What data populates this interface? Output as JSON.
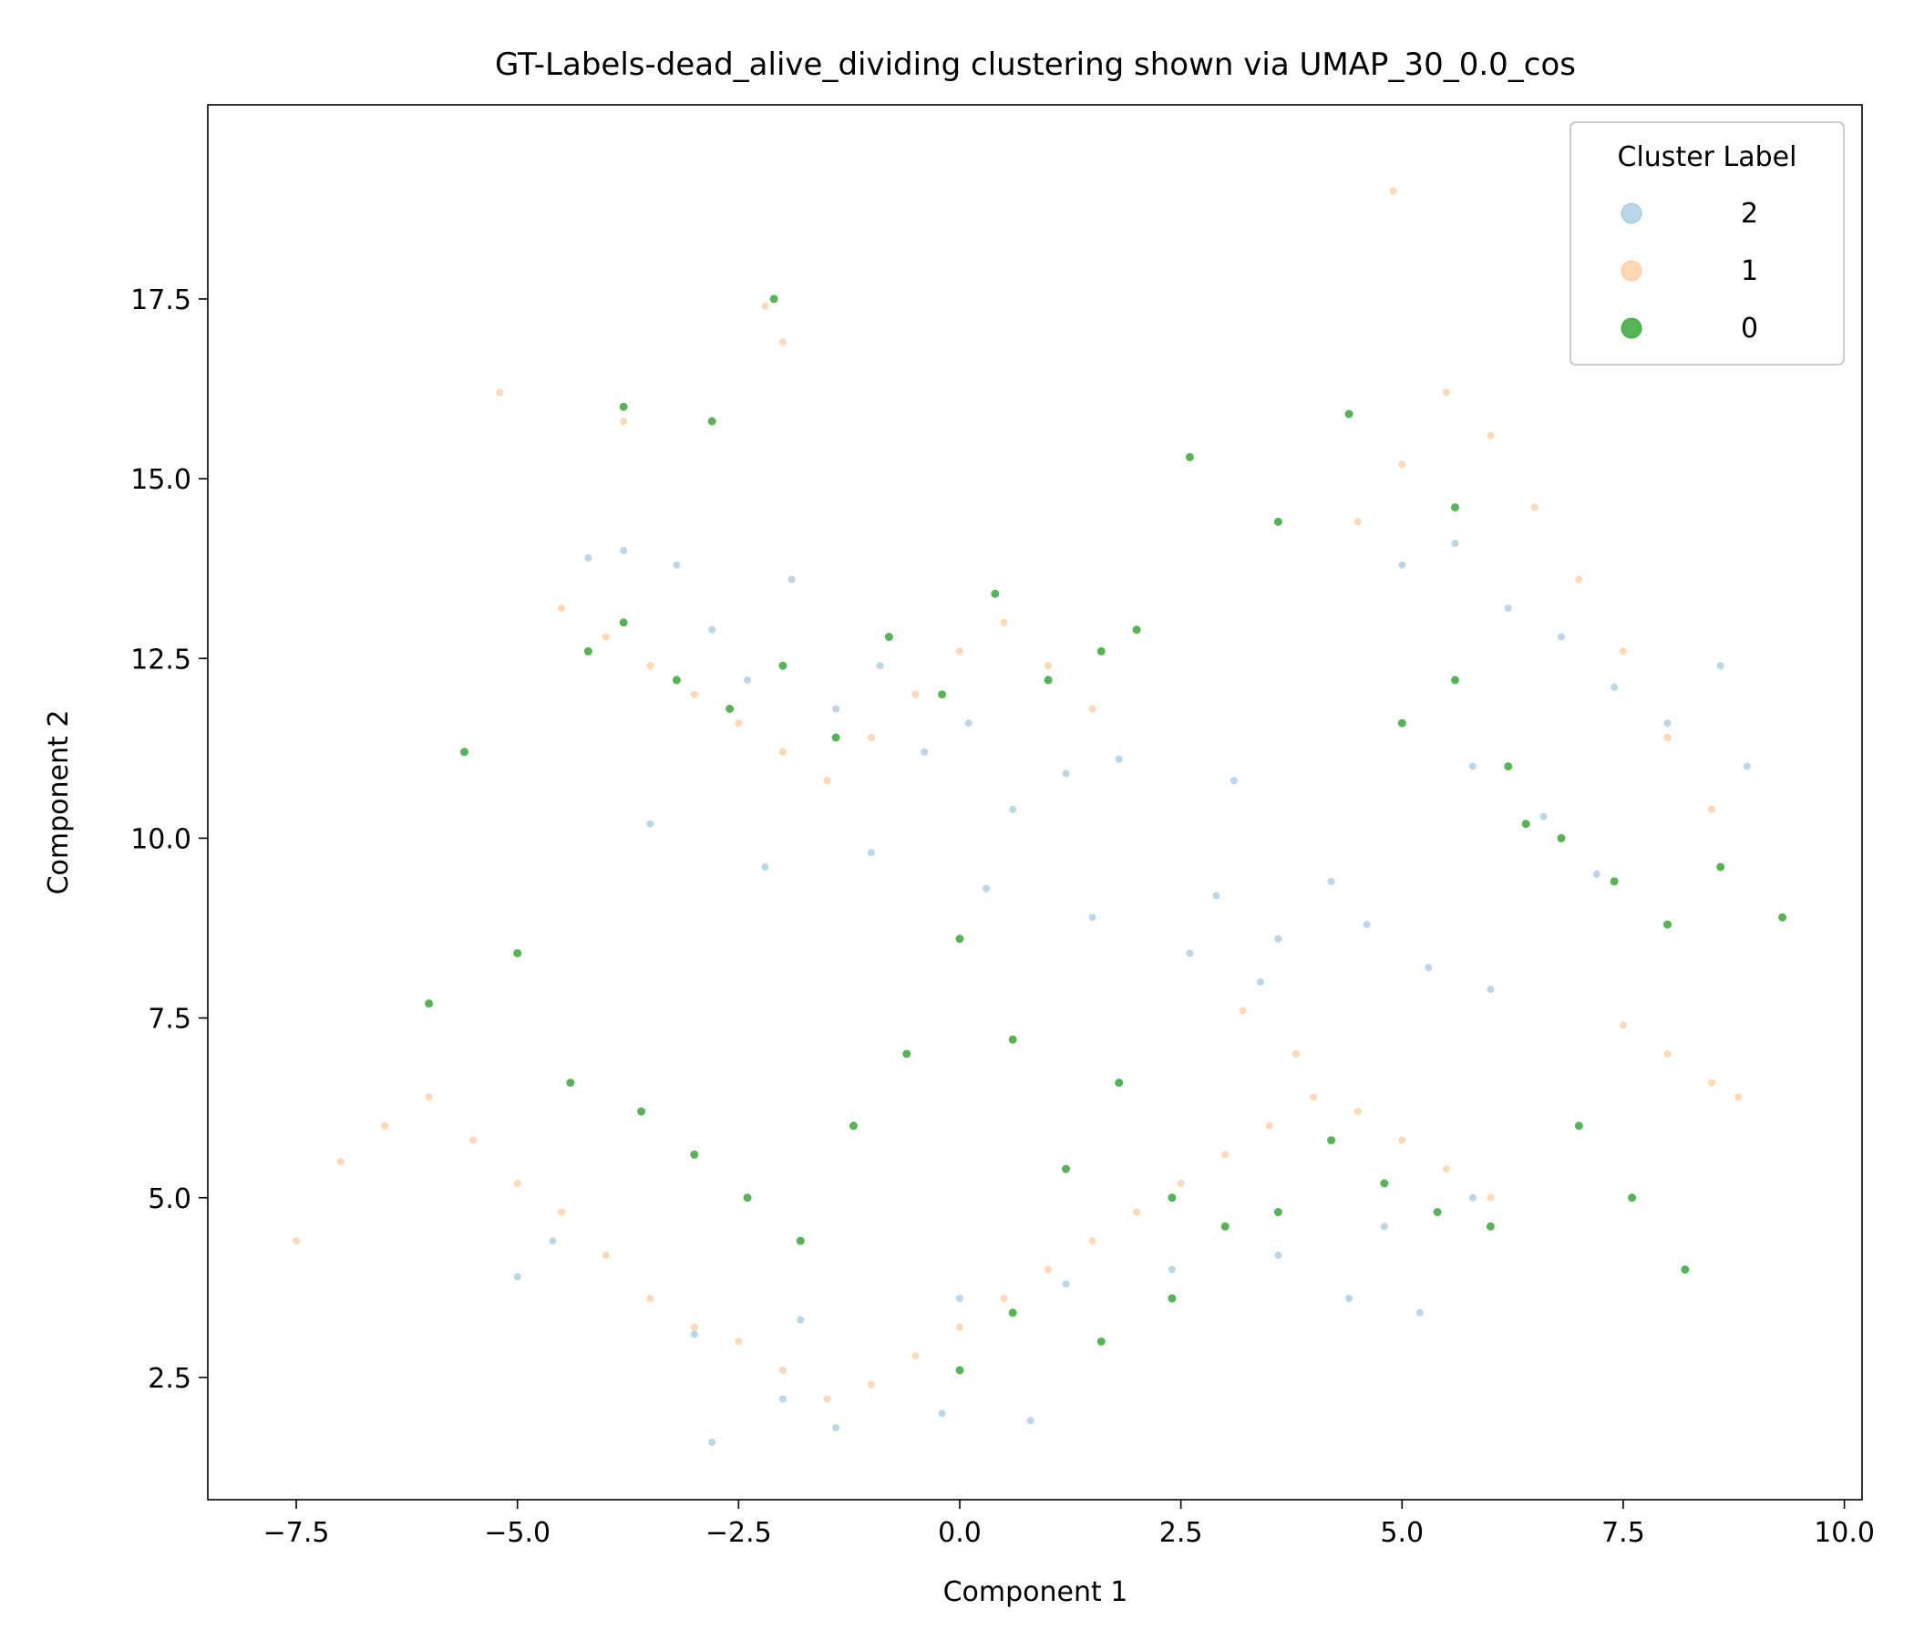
{
  "chart_data": {
    "type": "scatter",
    "title": "GT-Labels-dead_alive_dividing clustering shown via UMAP_30_0.0_cos",
    "xlabel": "Component 1",
    "ylabel": "Component 2",
    "xlim": [
      -8.5,
      10.2
    ],
    "ylim": [
      0.8,
      20.2
    ],
    "x_ticks": [
      -7.5,
      -5.0,
      -2.5,
      0.0,
      2.5,
      5.0,
      7.5,
      10.0
    ],
    "x_tick_labels": [
      "−7.5",
      "−5.0",
      "−2.5",
      "0.0",
      "2.5",
      "5.0",
      "7.5",
      "10.0"
    ],
    "y_ticks": [
      2.5,
      5.0,
      7.5,
      10.0,
      12.5,
      15.0,
      17.5
    ],
    "y_tick_labels": [
      "2.5",
      "5.0",
      "7.5",
      "10.0",
      "12.5",
      "15.0",
      "17.5"
    ],
    "grid": false,
    "legend": {
      "title": "Cluster Label",
      "position": "top-right",
      "entries": [
        {
          "label": "2",
          "color": "#1f77b4",
          "alpha": 0.3
        },
        {
          "label": "1",
          "color": "#ff7f0e",
          "alpha": 0.3
        },
        {
          "label": "0",
          "color": "#2ca02c",
          "alpha": 0.8
        }
      ]
    },
    "series": [
      {
        "name": "2",
        "color": "#1f77b4",
        "alpha": 0.3,
        "x": [
          -4.2,
          -3.8,
          -3.2,
          -2.8,
          -2.4,
          -1.9,
          -1.4,
          -0.9,
          -0.4,
          0.1,
          0.6,
          1.2,
          1.8,
          -3.5,
          -2.2,
          -1.0,
          0.3,
          1.5,
          2.6,
          3.4,
          4.2,
          5.0,
          5.6,
          6.2,
          6.8,
          7.4,
          8.0,
          5.8,
          6.6,
          7.2,
          4.6,
          5.3,
          6.0,
          3.1,
          2.9,
          3.6,
          4.4,
          5.2,
          -2.8,
          -2.0,
          -1.4,
          -0.2,
          0.8,
          -4.6,
          -5.0,
          -3.0,
          -1.8,
          0.0,
          1.2,
          2.4,
          3.6,
          4.8,
          5.8,
          8.6,
          8.9
        ],
        "y": [
          13.9,
          14.0,
          13.8,
          12.9,
          12.2,
          13.6,
          11.8,
          12.4,
          11.2,
          11.6,
          10.4,
          10.9,
          11.1,
          10.2,
          9.6,
          9.8,
          9.3,
          8.9,
          8.4,
          8.0,
          9.4,
          13.8,
          14.1,
          13.2,
          12.8,
          12.1,
          11.6,
          11.0,
          10.3,
          9.5,
          8.8,
          8.2,
          7.9,
          10.8,
          9.2,
          8.6,
          3.6,
          3.4,
          1.6,
          2.2,
          1.8,
          2.0,
          1.9,
          4.4,
          3.9,
          3.1,
          3.3,
          3.6,
          3.8,
          4.0,
          4.2,
          4.6,
          5.0,
          12.4,
          11.0
        ]
      },
      {
        "name": "1",
        "color": "#ff7f0e",
        "alpha": 0.3,
        "x": [
          -7.5,
          -7.0,
          -6.5,
          -6.0,
          -5.5,
          -5.0,
          -4.5,
          -4.0,
          -3.5,
          -3.0,
          -2.5,
          -2.0,
          -1.5,
          -1.0,
          -0.5,
          0.0,
          0.5,
          1.0,
          1.5,
          2.0,
          2.5,
          3.0,
          3.5,
          4.0,
          4.5,
          5.0,
          5.5,
          6.0,
          -4.5,
          -4.0,
          -3.5,
          -3.0,
          -2.5,
          -2.0,
          -1.5,
          -1.0,
          -0.5,
          0.0,
          0.5,
          1.0,
          1.5,
          4.5,
          5.0,
          5.5,
          6.0,
          6.5,
          7.0,
          7.5,
          8.0,
          8.5,
          -2.2,
          -2.0,
          -5.2,
          -3.8,
          4.9,
          7.5,
          8.0,
          8.5,
          8.8,
          3.2,
          3.8
        ],
        "y": [
          4.4,
          5.5,
          6.0,
          6.4,
          5.8,
          5.2,
          4.8,
          4.2,
          3.6,
          3.2,
          3.0,
          2.6,
          2.2,
          2.4,
          2.8,
          3.2,
          3.6,
          4.0,
          4.4,
          4.8,
          5.2,
          5.6,
          6.0,
          6.4,
          6.2,
          5.8,
          5.4,
          5.0,
          13.2,
          12.8,
          12.4,
          12.0,
          11.6,
          11.2,
          10.8,
          11.4,
          12.0,
          12.6,
          13.0,
          12.4,
          11.8,
          14.4,
          15.2,
          16.2,
          15.6,
          14.6,
          13.6,
          12.6,
          11.4,
          10.4,
          17.4,
          16.9,
          16.2,
          15.8,
          19.0,
          7.4,
          7.0,
          6.6,
          6.4,
          7.6,
          7.0
        ]
      },
      {
        "name": "0",
        "color": "#2ca02c",
        "alpha": 0.8,
        "x": [
          -5.6,
          -4.2,
          -3.8,
          -3.2,
          -2.6,
          -2.0,
          -1.4,
          -0.8,
          -0.2,
          0.4,
          1.0,
          1.6,
          2.0,
          -6.0,
          -5.0,
          -4.4,
          -3.6,
          -3.0,
          -2.4,
          -1.8,
          -1.2,
          -0.6,
          0.0,
          0.6,
          1.2,
          1.8,
          2.4,
          3.0,
          3.6,
          4.2,
          4.8,
          5.4,
          6.0,
          5.0,
          5.6,
          6.2,
          6.8,
          7.4,
          8.0,
          8.6,
          9.3,
          7.0,
          7.6,
          8.2,
          -2.1,
          -3.8,
          -2.8,
          0.0,
          0.6,
          1.6,
          2.4,
          3.6,
          4.4,
          5.6,
          6.4,
          2.6
        ],
        "y": [
          11.2,
          12.6,
          13.0,
          12.2,
          11.8,
          12.4,
          11.4,
          12.8,
          12.0,
          13.4,
          12.2,
          12.6,
          12.9,
          7.7,
          8.4,
          6.6,
          6.2,
          5.6,
          5.0,
          4.4,
          6.0,
          7.0,
          8.6,
          7.2,
          5.4,
          6.6,
          5.0,
          4.6,
          4.8,
          5.8,
          5.2,
          4.8,
          4.6,
          11.6,
          12.2,
          11.0,
          10.0,
          9.4,
          8.8,
          9.6,
          8.9,
          6.0,
          5.0,
          4.0,
          17.5,
          16.0,
          15.8,
          2.6,
          3.4,
          3.0,
          3.6,
          14.4,
          15.9,
          14.6,
          10.2,
          15.3
        ]
      }
    ]
  }
}
